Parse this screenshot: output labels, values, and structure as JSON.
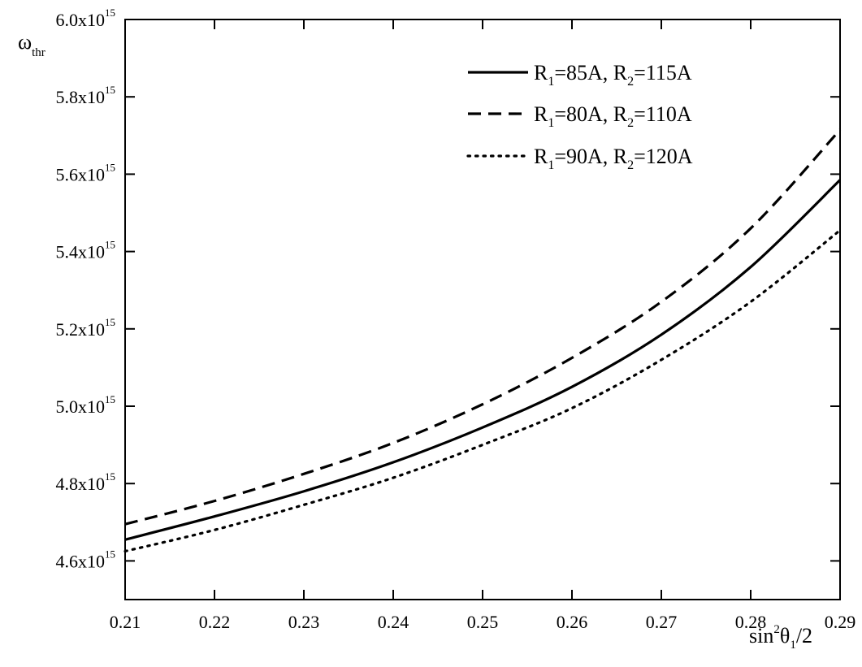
{
  "chart_data": {
    "type": "line",
    "title": "",
    "xlabel": {
      "base": "sin",
      "sup": "2",
      "theta": "θ",
      "sub": "1",
      "tail": "/2"
    },
    "ylabel": {
      "base": "ω",
      "sub": "thr"
    },
    "xlim": [
      0.21,
      0.29
    ],
    "ylim": [
      4500000000000000.0,
      6000000000000000.0
    ],
    "grid": false,
    "legend_position": "top-right",
    "x_ticks": [
      {
        "value": 0.21,
        "label": "0.21"
      },
      {
        "value": 0.22,
        "label": "0.22"
      },
      {
        "value": 0.23,
        "label": "0.23"
      },
      {
        "value": 0.24,
        "label": "0.24"
      },
      {
        "value": 0.25,
        "label": "0.25"
      },
      {
        "value": 0.26,
        "label": "0.26"
      },
      {
        "value": 0.27,
        "label": "0.27"
      },
      {
        "value": 0.28,
        "label": "0.28"
      },
      {
        "value": 0.29,
        "label": "0.29"
      }
    ],
    "y_ticks": [
      {
        "value": 4600000000000000.0,
        "mantissa": "4.6x10",
        "exp": "15"
      },
      {
        "value": 4800000000000000.0,
        "mantissa": "4.8x10",
        "exp": "15"
      },
      {
        "value": 5000000000000000.0,
        "mantissa": "5.0x10",
        "exp": "15"
      },
      {
        "value": 5200000000000000.0,
        "mantissa": "5.2x10",
        "exp": "15"
      },
      {
        "value": 5400000000000000.0,
        "mantissa": "5.4x10",
        "exp": "15"
      },
      {
        "value": 5600000000000000.0,
        "mantissa": "5.6x10",
        "exp": "15"
      },
      {
        "value": 5800000000000000.0,
        "mantissa": "5.8x10",
        "exp": "15"
      },
      {
        "value": 6000000000000000.0,
        "mantissa": "6.0x10",
        "exp": "15"
      }
    ],
    "x": [
      0.21,
      0.22,
      0.23,
      0.24,
      0.25,
      0.26,
      0.27,
      0.28,
      0.29
    ],
    "series": [
      {
        "style": "solid",
        "legend": [
          "R",
          "1",
          "=85A, R",
          "2",
          "=115A"
        ],
        "values": [
          4655000000000000.0,
          4715000000000000.0,
          4780000000000000.0,
          4855000000000000.0,
          4945000000000000.0,
          5050000000000000.0,
          5185000000000000.0,
          5360000000000000.0,
          5585000000000000.0
        ]
      },
      {
        "style": "dashed",
        "legend": [
          "R",
          "1",
          "=80A, R",
          "2",
          "=110A"
        ],
        "values": [
          4695000000000000.0,
          4755000000000000.0,
          4825000000000000.0,
          4905000000000000.0,
          5005000000000000.0,
          5125000000000000.0,
          5270000000000000.0,
          5460000000000000.0,
          5715000000000000.0
        ]
      },
      {
        "style": "dotted",
        "legend": [
          "R",
          "1",
          "=90A, R",
          "2",
          "=120A"
        ],
        "values": [
          4625000000000000.0,
          4680000000000000.0,
          4745000000000000.0,
          4815000000000000.0,
          4900000000000000.0,
          4995000000000000.0,
          5120000000000000.0,
          5270000000000000.0,
          5455000000000000.0
        ]
      }
    ]
  }
}
